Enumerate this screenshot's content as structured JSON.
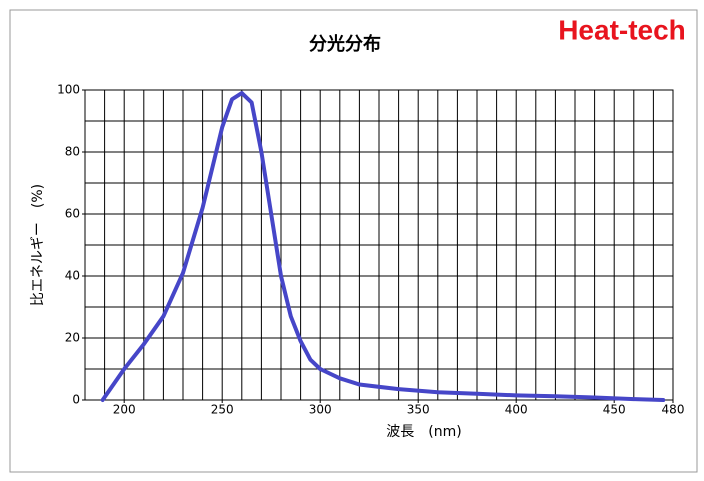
{
  "chart_data": {
    "type": "line",
    "title": "分光分布",
    "brand": "Heat-tech",
    "xlabel": "波長　(nm)",
    "ylabel": "比エネルギー　(%)",
    "x": [
      189,
      200,
      210,
      220,
      230,
      240,
      250,
      255,
      260,
      265,
      270,
      275,
      280,
      285,
      290,
      295,
      300,
      310,
      320,
      340,
      360,
      380,
      400,
      420,
      440,
      460,
      475
    ],
    "series": [
      {
        "name": "比エネルギー",
        "color": "#4646c8",
        "values": [
          0,
          10,
          18,
          27,
          41,
          62,
          88,
          97,
          99,
          96,
          80,
          60,
          40,
          27,
          19,
          13,
          10,
          7,
          5,
          3.5,
          2.5,
          2,
          1.5,
          1.2,
          0.8,
          0.3,
          0
        ]
      }
    ],
    "xlim": [
      180,
      480
    ],
    "ylim": [
      0,
      100
    ],
    "xticks": [
      200,
      250,
      300,
      350,
      400,
      450,
      480
    ],
    "yticks": [
      0,
      20,
      40,
      60,
      80,
      100
    ],
    "xgrid": [
      180,
      190,
      200,
      210,
      220,
      230,
      240,
      250,
      260,
      270,
      280,
      290,
      300,
      310,
      320,
      330,
      340,
      350,
      360,
      370,
      380,
      390,
      400,
      410,
      420,
      430,
      440,
      450,
      460,
      470,
      480
    ],
    "ygrid": [
      0,
      10,
      20,
      30,
      40,
      50,
      60,
      70,
      80,
      90,
      100
    ],
    "grid": true
  }
}
